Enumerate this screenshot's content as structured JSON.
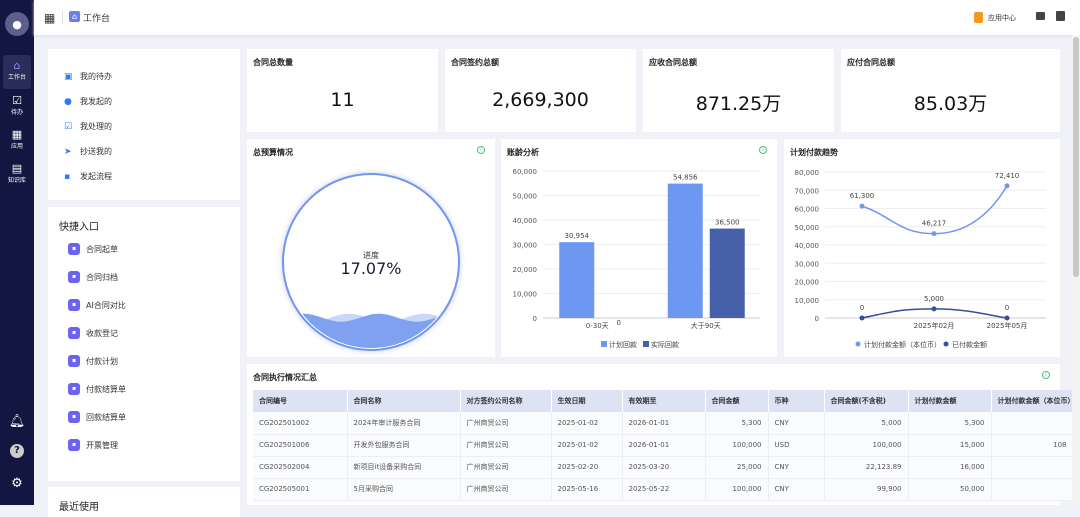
{
  "sidebar": {
    "items": [
      {
        "label": "工作台",
        "icon": "home-icon"
      },
      {
        "label": "待办",
        "icon": "clipboard-check-icon"
      },
      {
        "label": "应用",
        "icon": "grid-icon"
      },
      {
        "label": "知识库",
        "icon": "book-icon"
      }
    ]
  },
  "header": {
    "title": "工作台",
    "app_center": "应用中心"
  },
  "my_tasks": [
    "我的待办",
    "我发起的",
    "我处理的",
    "抄送我的",
    "发起流程"
  ],
  "quick": {
    "title": "快捷入口",
    "items": [
      "合同起草",
      "合同归档",
      "AI合同对比",
      "收款登记",
      "付款计划",
      "付款结算单",
      "回款结算单",
      "开票管理"
    ]
  },
  "recent": {
    "title": "最近使用"
  },
  "stats": [
    {
      "label": "合同总数量",
      "value": "11"
    },
    {
      "label": "合同签约总额",
      "value": "2,669,300"
    },
    {
      "label": "应收合同总额",
      "value": "871.25万"
    },
    {
      "label": "应付合同总额",
      "value": "85.03万"
    }
  ],
  "budget": {
    "title": "总预算情况",
    "label": "进度",
    "value": "17.07%",
    "progress": 0.1707
  },
  "chart_data": [
    {
      "type": "bar",
      "title": "账龄分析",
      "categories": [
        "0-30天",
        "大于90天"
      ],
      "ylim": [
        0,
        60000
      ],
      "yticks": [
        "0",
        "10,000",
        "20,000",
        "30,000",
        "40,000",
        "50,000",
        "60,000"
      ],
      "legend": "bottom",
      "colors": [
        "#6e97f2",
        "#4660aa"
      ],
      "series": [
        {
          "name": "计划回款",
          "values": [
            30954,
            54856
          ],
          "labels": [
            "30,954",
            "54,856"
          ]
        },
        {
          "name": "实际回款",
          "values": [
            0,
            36500
          ],
          "labels": [
            "0",
            "36,500"
          ]
        }
      ]
    },
    {
      "type": "line",
      "title": "计划付款趋势",
      "categories": [
        "",
        "2025年02月",
        "2025年05月"
      ],
      "ylim": [
        0,
        80000
      ],
      "yticks": [
        "0",
        "10,000",
        "20,000",
        "30,000",
        "40,000",
        "50,000",
        "60,000",
        "70,000",
        "80,000"
      ],
      "legend": "bottom",
      "colors": [
        "#6e97f2",
        "#334f9e"
      ],
      "series": [
        {
          "name": "计划付款金额（本位币）",
          "values": [
            61300,
            46217,
            72410
          ],
          "labels": [
            "61,300",
            "46,217",
            "72,410"
          ]
        },
        {
          "name": "已付款金额",
          "values": [
            0,
            5000,
            0
          ],
          "labels": [
            "0",
            "5,000",
            "0"
          ]
        }
      ]
    }
  ],
  "table": {
    "title": "合同执行情况汇总",
    "columns": [
      "合同编号",
      "合同名称",
      "对方签约公司名称",
      "生效日期",
      "有效期至",
      "合同金额",
      "币种",
      "合同金额(不含税)",
      "计划付款金额",
      "计划付款金额（本位币）"
    ],
    "rows": [
      [
        "CG202501002",
        "2024年审计服务合同",
        "广州商贸公司",
        "2025-01-02",
        "2026-01-01",
        "5,300",
        "CNY",
        "5,000",
        "5,300",
        ""
      ],
      [
        "CG202501006",
        "开发外包服务合同",
        "广州商贸公司",
        "2025-01-02",
        "2026-01-01",
        "100,000",
        "USD",
        "100,000",
        "15,000",
        "108"
      ],
      [
        "CG202502004",
        "新项目it设备采购合同",
        "广州商贸公司",
        "2025-02-20",
        "2025-03-20",
        "25,000",
        "CNY",
        "22,123.89",
        "16,000",
        ""
      ],
      [
        "CG202505001",
        "5月采购合同",
        "广州商贸公司",
        "2025-05-16",
        "2025-05-22",
        "100,000",
        "CNY",
        "99,900",
        "50,000",
        ""
      ]
    ]
  }
}
